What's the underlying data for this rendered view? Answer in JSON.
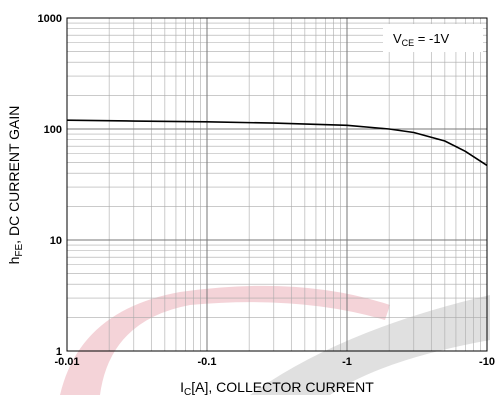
{
  "chart_data": {
    "type": "line",
    "annotation": {
      "main": "V",
      "sub": "CE",
      "rest": " = -1V"
    },
    "x_label": {
      "main": "I",
      "sub": "C",
      "rest": "[A], COLLECTOR CURRENT"
    },
    "y_label": {
      "main": "h",
      "sub": "FE",
      "rest": ", DC CURRENT GAIN"
    },
    "x": [
      -0.01,
      -0.03,
      -0.1,
      -0.3,
      -1,
      -2,
      -3,
      -5,
      -7,
      -10
    ],
    "series": [
      {
        "color": "#000000",
        "values": [
          120,
          118,
          116,
          113,
          108,
          100,
          93,
          78,
          63,
          47
        ]
      }
    ],
    "xlim": [
      -0.01,
      -10
    ],
    "xticks": [
      -0.01,
      -0.1,
      -1,
      -10
    ],
    "ylim": [
      1,
      1000
    ],
    "yticks": [
      1,
      10,
      100,
      1000
    ],
    "log_x": true,
    "log_y": true,
    "grid": true,
    "minor_grid": true
  }
}
